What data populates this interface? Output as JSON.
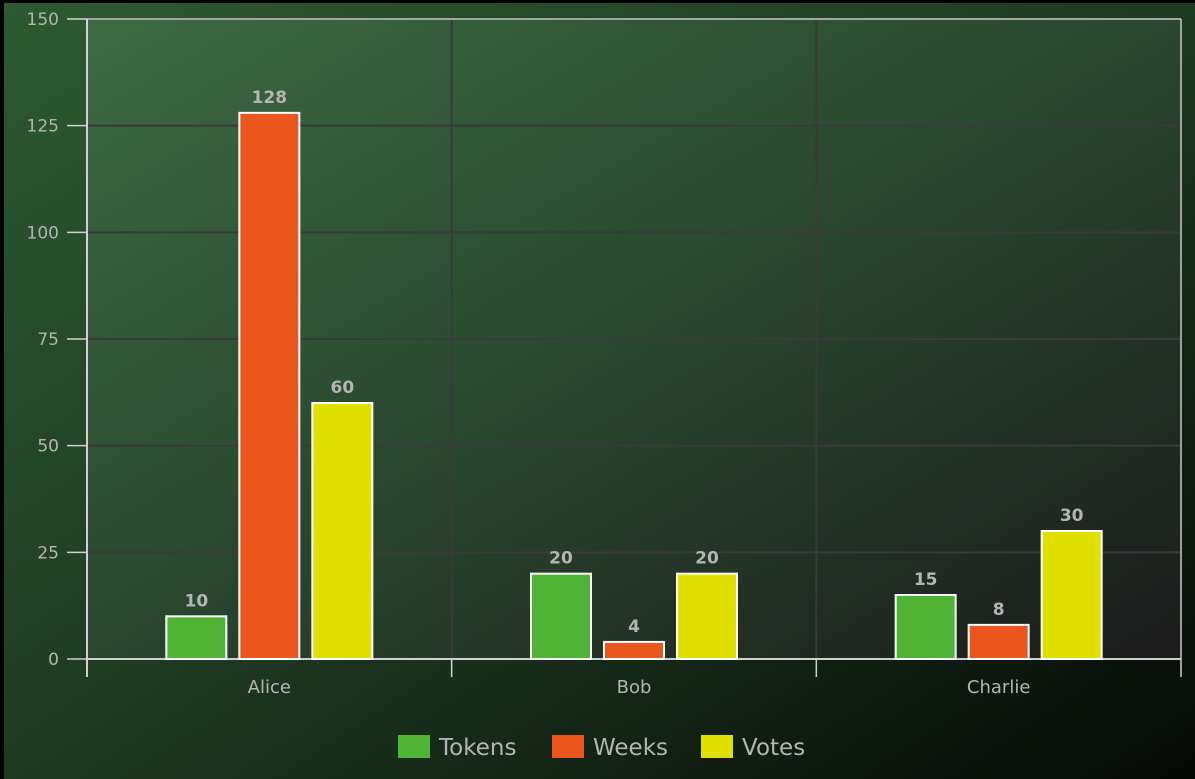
{
  "chart_data": {
    "type": "bar",
    "categories": [
      "Alice",
      "Bob",
      "Charlie"
    ],
    "series": [
      {
        "name": "Tokens",
        "values": [
          10,
          20,
          15
        ],
        "color": "#4fb335"
      },
      {
        "name": "Weeks",
        "values": [
          128,
          4,
          8
        ],
        "color": "#eb561d"
      },
      {
        "name": "Votes",
        "values": [
          60,
          20,
          30
        ],
        "color": "#dfe000"
      }
    ],
    "ylim": [
      0,
      150
    ],
    "yticks": [
      0,
      25,
      50,
      75,
      100,
      125,
      150
    ],
    "grid": true,
    "legend": "bottom-center",
    "data_labels": true
  }
}
